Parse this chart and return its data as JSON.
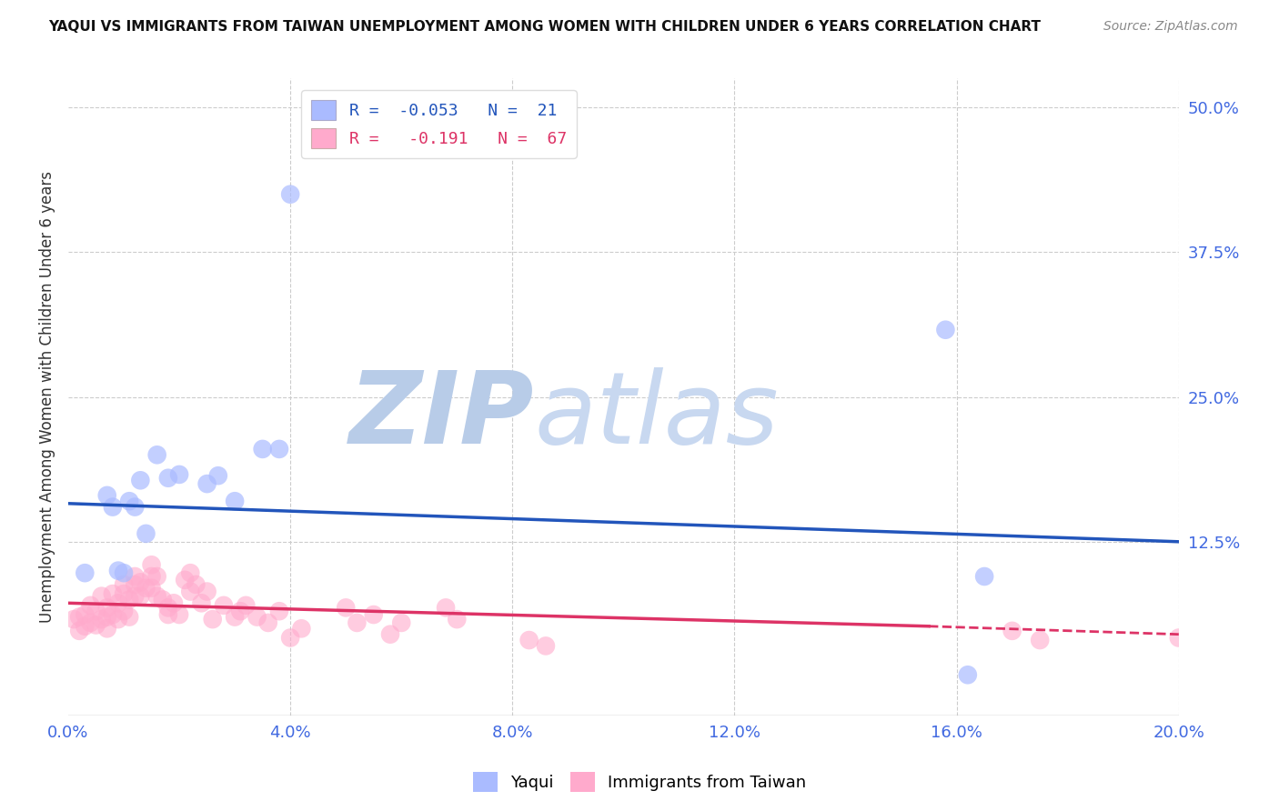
{
  "title": "YAQUI VS IMMIGRANTS FROM TAIWAN UNEMPLOYMENT AMONG WOMEN WITH CHILDREN UNDER 6 YEARS CORRELATION CHART",
  "source": "Source: ZipAtlas.com",
  "ylabel": "Unemployment Among Women with Children Under 6 years",
  "xlabel_color": "#4169e1",
  "yaxis_label_color": "#4169e1",
  "xlim": [
    0.0,
    0.2
  ],
  "ylim": [
    -0.025,
    0.525
  ],
  "xticks": [
    0.0,
    0.04,
    0.08,
    0.12,
    0.16,
    0.2
  ],
  "yticks_right": [
    0.125,
    0.25,
    0.375,
    0.5
  ],
  "ytick_labels_right": [
    "12.5%",
    "25.0%",
    "37.5%",
    "50.0%"
  ],
  "xtick_labels": [
    "0.0%",
    "4.0%",
    "8.0%",
    "12.0%",
    "16.0%",
    "20.0%"
  ],
  "legend_blue_label": "R =  -0.053   N =  21",
  "legend_pink_label": "R =   -0.191   N =  67",
  "blue_color": "#aabbff",
  "pink_color": "#ffaacc",
  "blue_line_color": "#2255bb",
  "pink_line_color": "#dd3366",
  "watermark_color": "#d5e5f5",
  "background_color": "#ffffff",
  "blue_scatter_x": [
    0.003,
    0.007,
    0.008,
    0.009,
    0.01,
    0.011,
    0.012,
    0.013,
    0.014,
    0.016,
    0.018,
    0.02,
    0.025,
    0.027,
    0.03,
    0.035,
    0.038,
    0.04,
    0.158,
    0.162,
    0.165
  ],
  "blue_scatter_y": [
    0.098,
    0.165,
    0.155,
    0.1,
    0.098,
    0.16,
    0.155,
    0.178,
    0.132,
    0.2,
    0.18,
    0.183,
    0.175,
    0.182,
    0.16,
    0.205,
    0.205,
    0.425,
    0.308,
    0.01,
    0.095
  ],
  "pink_scatter_x": [
    0.001,
    0.002,
    0.002,
    0.003,
    0.003,
    0.004,
    0.004,
    0.005,
    0.005,
    0.006,
    0.006,
    0.007,
    0.007,
    0.007,
    0.008,
    0.008,
    0.009,
    0.009,
    0.01,
    0.01,
    0.01,
    0.011,
    0.011,
    0.012,
    0.012,
    0.012,
    0.013,
    0.013,
    0.014,
    0.015,
    0.015,
    0.015,
    0.016,
    0.016,
    0.017,
    0.018,
    0.018,
    0.019,
    0.02,
    0.021,
    0.022,
    0.022,
    0.023,
    0.024,
    0.025,
    0.026,
    0.028,
    0.03,
    0.031,
    0.032,
    0.034,
    0.036,
    0.038,
    0.04,
    0.042,
    0.05,
    0.052,
    0.055,
    0.058,
    0.06,
    0.068,
    0.07,
    0.083,
    0.086,
    0.17,
    0.175,
    0.2
  ],
  "pink_scatter_y": [
    0.058,
    0.06,
    0.048,
    0.062,
    0.052,
    0.07,
    0.055,
    0.065,
    0.053,
    0.078,
    0.058,
    0.068,
    0.06,
    0.05,
    0.08,
    0.062,
    0.072,
    0.058,
    0.088,
    0.08,
    0.065,
    0.075,
    0.06,
    0.095,
    0.088,
    0.078,
    0.09,
    0.078,
    0.085,
    0.095,
    0.105,
    0.085,
    0.095,
    0.078,
    0.075,
    0.068,
    0.062,
    0.072,
    0.062,
    0.092,
    0.098,
    0.082,
    0.088,
    0.072,
    0.082,
    0.058,
    0.07,
    0.06,
    0.065,
    0.07,
    0.06,
    0.055,
    0.065,
    0.042,
    0.05,
    0.068,
    0.055,
    0.062,
    0.045,
    0.055,
    0.068,
    0.058,
    0.04,
    0.035,
    0.048,
    0.04,
    0.042
  ],
  "blue_line_x": [
    0.0,
    0.2
  ],
  "blue_line_y": [
    0.158,
    0.125
  ],
  "pink_line_x": [
    0.0,
    0.155
  ],
  "pink_line_y": [
    0.072,
    0.052
  ]
}
